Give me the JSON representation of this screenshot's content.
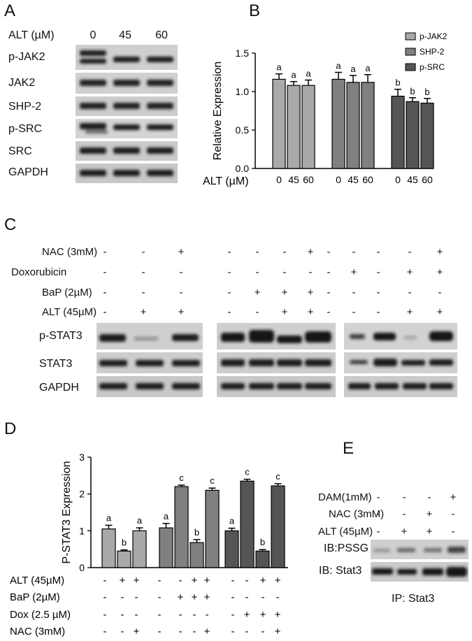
{
  "panels": {
    "a": "A",
    "b": "B",
    "c": "C",
    "d": "D",
    "e": "E"
  },
  "panel_a": {
    "alt_label": "ALT (µM)",
    "doses": [
      "0",
      "45",
      "60"
    ],
    "blots": [
      "p-JAK2",
      "JAK2",
      "SHP-2",
      "p-SRC",
      "SRC",
      "GAPDH"
    ]
  },
  "panel_c": {
    "treatments": [
      {
        "label": "NAC (3mM)",
        "signs": [
          [
            "-",
            "-",
            "+"
          ],
          [
            "-",
            "-",
            "-",
            "+"
          ],
          [
            "-",
            "-",
            "-",
            "-",
            "+"
          ]
        ]
      },
      {
        "label": "Doxorubicin",
        "signs": [
          [
            "-",
            "-",
            "-"
          ],
          [
            "-",
            "-",
            "-",
            "-"
          ],
          [
            "-",
            "+",
            "-",
            "+",
            "+"
          ]
        ]
      },
      {
        "label": "BaP (2µM)",
        "signs": [
          [
            "-",
            "-",
            "-"
          ],
          [
            "-",
            "+",
            "+",
            "+"
          ],
          [
            "-",
            "-",
            "-",
            "-",
            "-"
          ]
        ]
      },
      {
        "label": "ALT (45µM)",
        "signs": [
          [
            "-",
            "+",
            "+"
          ],
          [
            "-",
            "-",
            "+",
            "+"
          ],
          [
            "-",
            "-",
            "-",
            "+",
            "+"
          ]
        ]
      }
    ],
    "blots": [
      "p-STAT3",
      "STAT3",
      "GAPDH"
    ]
  },
  "panel_e": {
    "treatments": [
      {
        "label": "DAM(1mM)",
        "signs": [
          "-",
          "-",
          "-",
          "+"
        ]
      },
      {
        "label": "NAC (3mM)",
        "signs": [
          "-",
          "-",
          "+",
          "-"
        ]
      },
      {
        "label": "ALT (45µM)",
        "signs": [
          "-",
          "+",
          "+",
          "-"
        ]
      }
    ],
    "blots": [
      "IB:PSSG",
      "IB: Stat3"
    ],
    "footer": "IP: Stat3"
  },
  "colors": {
    "light": "#a9a9a9",
    "mid": "#808080",
    "dark": "#555555"
  },
  "chart_data": [
    {
      "type": "bar",
      "ylabel": "Relative Expression",
      "xlabel": "ALT (µM)",
      "ylim": [
        0,
        1.5
      ],
      "yticks": [
        "0.0",
        "0.5",
        "1.0",
        "1.5"
      ],
      "legend_position": "top-right",
      "categories": [
        "0",
        "45",
        "60"
      ],
      "series": [
        {
          "name": "p-JAK2",
          "values": [
            1.16,
            1.08,
            1.08
          ],
          "errors": [
            0.07,
            0.05,
            0.07
          ],
          "letters": [
            "a",
            "a",
            "a"
          ]
        },
        {
          "name": "SHP-2",
          "values": [
            1.16,
            1.12,
            1.12
          ],
          "errors": [
            0.09,
            0.09,
            0.1
          ],
          "letters": [
            "a",
            "a",
            "a"
          ]
        },
        {
          "name": "p-SRC",
          "values": [
            0.94,
            0.87,
            0.85
          ],
          "errors": [
            0.09,
            0.05,
            0.06
          ],
          "letters": [
            "b",
            "b",
            "b"
          ]
        }
      ]
    },
    {
      "type": "bar",
      "ylabel": "P-STAT3 Expression",
      "ylim": [
        0,
        3
      ],
      "yticks": [
        "0",
        "1",
        "2",
        "3"
      ],
      "groups": [
        {
          "values": [
            1.05,
            0.45,
            1.0
          ],
          "errors": [
            0.1,
            0.03,
            0.08
          ],
          "letters": [
            "a",
            "b",
            "a"
          ]
        },
        {
          "values": [
            1.08,
            2.2,
            0.68,
            2.1
          ],
          "errors": [
            0.12,
            0.04,
            0.08,
            0.06
          ],
          "letters": [
            "a",
            "c",
            "b",
            "c"
          ]
        },
        {
          "values": [
            1.0,
            2.35,
            0.45,
            2.22
          ],
          "errors": [
            0.07,
            0.05,
            0.04,
            0.06
          ],
          "letters": [
            "a",
            "c",
            "b",
            "c"
          ]
        }
      ],
      "conditions": [
        {
          "label": "ALT (45µM)",
          "signs": [
            "-",
            "+",
            "+",
            "-",
            "-",
            "+",
            "+",
            "-",
            "-",
            "+",
            "+"
          ]
        },
        {
          "label": "BaP (2µM)",
          "signs": [
            "-",
            "-",
            "-",
            "-",
            "+",
            "+",
            "+",
            "-",
            "-",
            "-",
            "-"
          ]
        },
        {
          "label": "Dox (2.5 µM)",
          "signs": [
            "-",
            "-",
            "-",
            "-",
            "-",
            "-",
            "-",
            "-",
            "+",
            "+",
            "+"
          ]
        },
        {
          "label": "NAC (3mM)",
          "signs": [
            "-",
            "-",
            "+",
            "-",
            "-",
            "-",
            "+",
            "-",
            "-",
            "-",
            "+"
          ]
        }
      ]
    }
  ]
}
